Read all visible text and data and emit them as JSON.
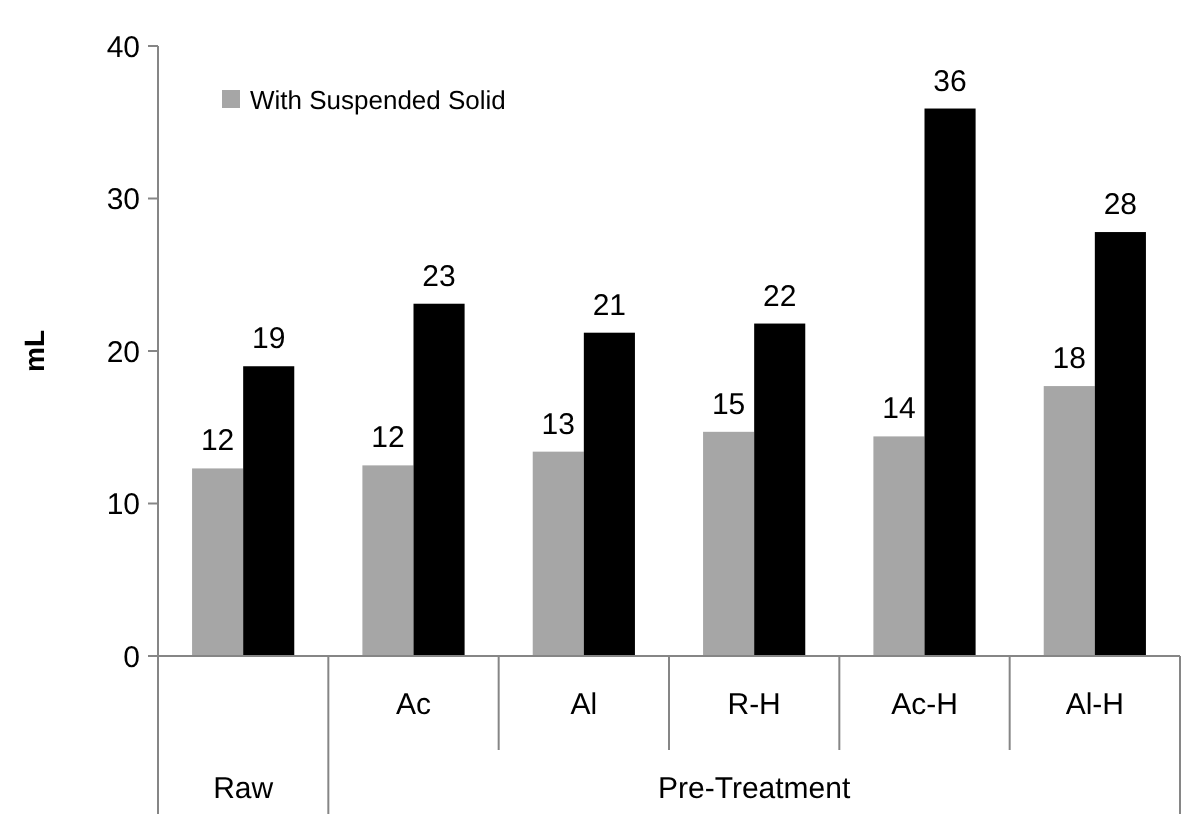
{
  "chart_data": {
    "type": "bar",
    "ylabel": "mL",
    "categories": [
      null,
      "Ac",
      "Al",
      "R-H",
      "Ac-H",
      "Al-H"
    ],
    "series": [
      {
        "name": "With Suspended Solid",
        "color": "#a6a6a6",
        "values": [
          12.3,
          12.5,
          13.4,
          14.7,
          14.4,
          17.7
        ],
        "value_labels": [
          "12",
          "12",
          "13",
          "15",
          "14",
          "18"
        ]
      },
      {
        "color": "#000000",
        "values": [
          19.0,
          23.1,
          21.2,
          21.8,
          35.9,
          27.8
        ],
        "value_labels": [
          "19",
          "23",
          "21",
          "22",
          "36",
          "28"
        ]
      }
    ],
    "ylim": [
      0,
      40
    ],
    "yticks": [
      0,
      10,
      20,
      30,
      40
    ],
    "legend": "top left",
    "annotations": [
      "Raw",
      "Pre-Treatment"
    ]
  }
}
